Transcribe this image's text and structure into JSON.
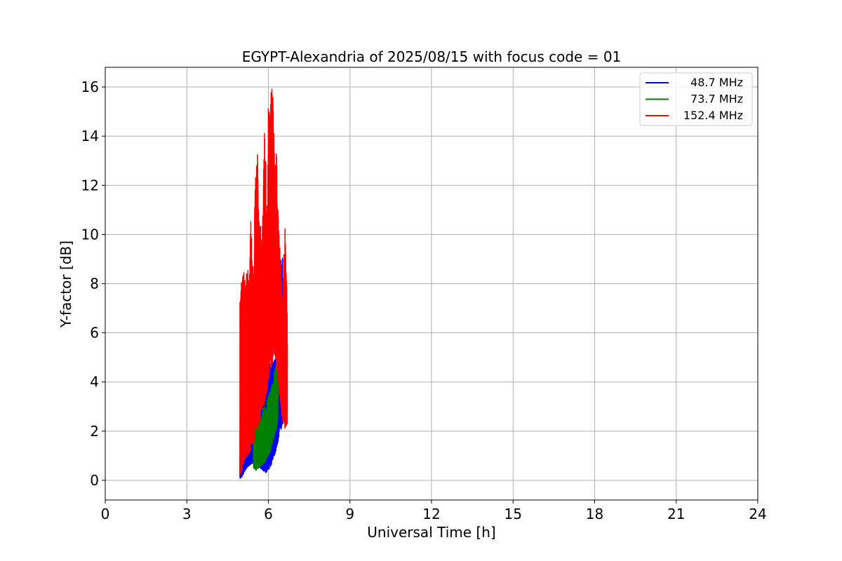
{
  "chart_data": {
    "type": "line",
    "title": "EGYPT-Alexandria of 2025/08/15 with focus code = 01",
    "xlabel": "Universal Time [h]",
    "ylabel": "Y-factor [dB]",
    "xlim": [
      0,
      24
    ],
    "ylim": [
      -0.8,
      16.8
    ],
    "xticks": [
      0,
      3,
      6,
      9,
      12,
      15,
      18,
      21,
      24
    ],
    "yticks": [
      0,
      2,
      4,
      6,
      8,
      10,
      12,
      14,
      16
    ],
    "grid": true,
    "legend_position": "top-right",
    "series": [
      {
        "name": "48.7 MHz",
        "color": "#0000ff",
        "x": [
          4.95,
          5.0,
          5.1,
          5.2,
          5.3,
          5.4,
          5.5,
          5.6,
          5.7,
          5.8,
          5.9,
          6.0,
          6.1,
          6.2,
          6.3,
          6.4,
          6.5,
          6.6,
          6.7
        ],
        "low": [
          0.0,
          0.1,
          0.3,
          0.5,
          0.6,
          0.7,
          0.6,
          0.5,
          0.5,
          0.4,
          0.3,
          0.4,
          0.6,
          0.9,
          1.3,
          1.8,
          2.2,
          2.5,
          2.8
        ],
        "high": [
          1.0,
          0.9,
          1.3,
          1.6,
          1.7,
          1.8,
          2.1,
          2.6,
          3.2,
          3.8,
          4.4,
          5.2,
          5.0,
          5.0,
          5.5,
          7.5,
          9.8,
          5.5,
          4.0
        ]
      },
      {
        "name": "73.7 MHz",
        "color": "#008000",
        "x": [
          5.45,
          5.55,
          5.65,
          5.75,
          5.85,
          5.95,
          6.05,
          6.15,
          6.25,
          6.35
        ],
        "low": [
          0.5,
          0.4,
          0.5,
          0.6,
          0.7,
          0.9,
          1.1,
          1.5,
          1.9,
          2.3
        ],
        "high": [
          2.6,
          2.8,
          3.0,
          2.8,
          3.0,
          3.3,
          3.6,
          4.0,
          4.7,
          5.0
        ]
      },
      {
        "name": "152.4 MHz",
        "color": "#ff0000",
        "x": [
          4.95,
          5.0,
          5.05,
          5.1,
          5.15,
          5.2,
          5.25,
          5.3,
          5.35,
          5.4,
          5.45,
          5.5,
          5.55,
          5.6,
          5.65,
          5.7,
          5.75,
          5.8,
          5.85,
          5.9,
          5.95,
          6.0,
          6.05,
          6.1,
          6.15,
          6.2,
          6.25,
          6.3,
          6.35,
          6.4,
          6.45,
          6.5,
          6.55,
          6.6,
          6.65,
          6.7
        ],
        "low": [
          0.0,
          0.3,
          0.5,
          0.6,
          0.8,
          0.9,
          1.0,
          1.1,
          1.2,
          1.4,
          1.5,
          1.7,
          1.9,
          2.1,
          2.3,
          2.5,
          2.7,
          2.9,
          3.1,
          3.3,
          3.6,
          3.9,
          4.2,
          4.5,
          4.8,
          5.0,
          5.0,
          4.5,
          4.0,
          3.5,
          3.0,
          2.5,
          2.3,
          2.1,
          2.2,
          2.3
        ],
        "high": [
          7.2,
          8.0,
          8.5,
          9.4,
          7.8,
          8.9,
          8.6,
          8.4,
          10.8,
          9.2,
          8.8,
          11.6,
          12.9,
          13.9,
          11.2,
          10.8,
          9.3,
          11.6,
          14.9,
          13.5,
          10.5,
          16.0,
          15.2,
          15.8,
          16.1,
          14.5,
          12.7,
          13.5,
          11.2,
          10.3,
          9.0,
          8.2,
          8.8,
          10.5,
          9.0,
          6.8
        ]
      }
    ]
  }
}
